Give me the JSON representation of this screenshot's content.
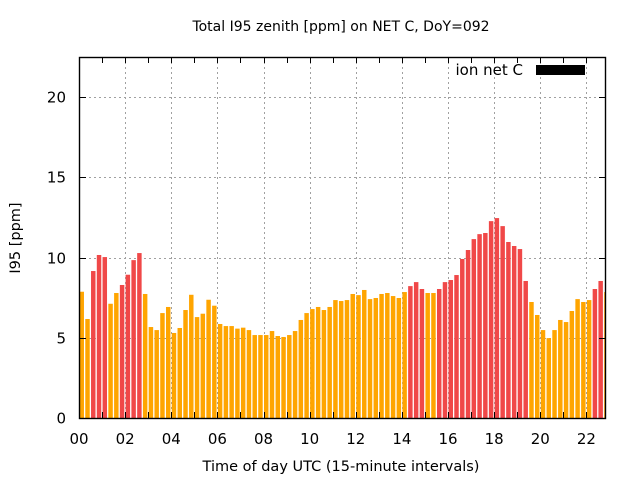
{
  "chart_data": {
    "type": "bar",
    "title": "Total I95 zenith [ppm] on NET C, DoY=092",
    "xlabel": "Time of day UTC (15-minute intervals)",
    "ylabel": "I95 [ppm]",
    "xlim": [
      0,
      22.85
    ],
    "ylim": [
      0,
      22.5
    ],
    "x_ticks": [
      0,
      2,
      4,
      6,
      8,
      10,
      12,
      14,
      16,
      18,
      20,
      22
    ],
    "x_tick_labels": [
      "00",
      "02",
      "04",
      "06",
      "08",
      "10",
      "12",
      "14",
      "16",
      "18",
      "20",
      "22"
    ],
    "y_ticks": [
      0,
      5,
      10,
      15,
      20
    ],
    "y_tick_labels": [
      "0",
      "5",
      "10",
      "15",
      "20"
    ],
    "grid": true,
    "legend": {
      "placement": "top-right",
      "entries": [
        {
          "label": "ion net C",
          "color": "#000000"
        }
      ]
    },
    "bin_hours": 0.25,
    "threshold": 8,
    "colors": {
      "above": "#f04848",
      "below": "#ffa500"
    },
    "values": [
      7.87,
      6.17,
      9.16,
      10.16,
      10.03,
      7.12,
      7.79,
      8.29,
      8.93,
      9.84,
      10.28,
      7.73,
      5.67,
      5.48,
      6.54,
      6.92,
      5.3,
      5.61,
      6.73,
      7.68,
      6.29,
      6.5,
      7.37,
      7.0,
      5.86,
      5.73,
      5.73,
      5.57,
      5.63,
      5.48,
      5.17,
      5.17,
      5.17,
      5.42,
      5.11,
      5.05,
      5.17,
      5.42,
      6.11,
      6.54,
      6.79,
      6.92,
      6.73,
      6.92,
      7.35,
      7.29,
      7.35,
      7.73,
      7.66,
      7.98,
      7.41,
      7.48,
      7.73,
      7.79,
      7.6,
      7.48,
      7.85,
      8.22,
      8.47,
      8.04,
      7.79,
      7.79,
      8.04,
      8.47,
      8.6,
      8.91,
      9.91,
      10.47,
      11.15,
      11.46,
      11.53,
      12.27,
      12.46,
      11.96,
      10.97,
      10.72,
      10.53,
      8.54,
      7.23,
      6.42,
      5.48,
      4.98,
      5.48,
      6.11,
      5.98,
      6.67,
      7.41,
      7.23,
      7.35,
      8.04,
      8.54,
      7.85
    ]
  }
}
